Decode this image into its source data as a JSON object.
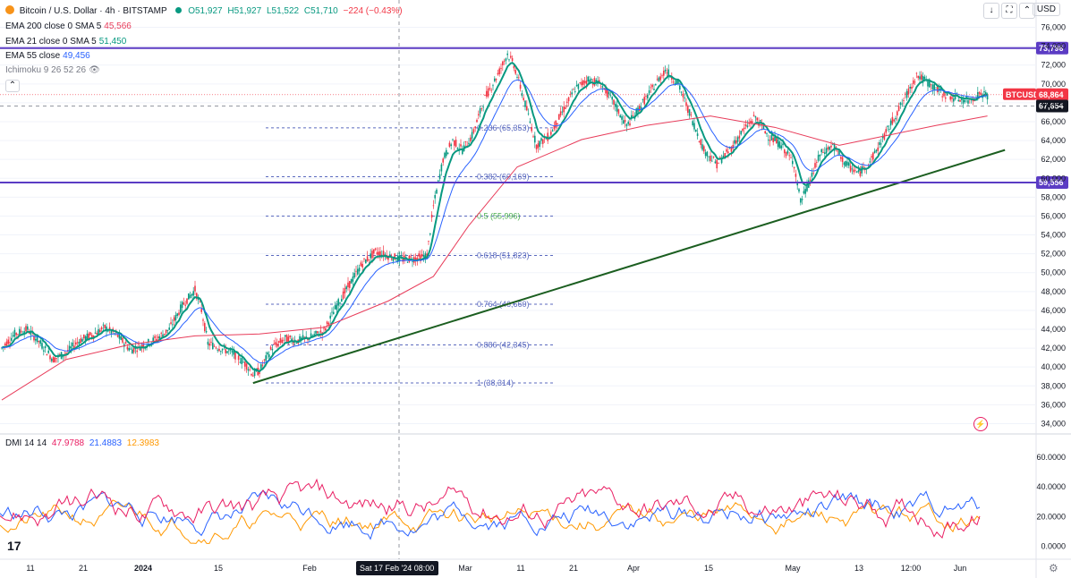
{
  "header": {
    "symbol": "Bitcoin / U.S. Dollar · 4h · BITSTAMP",
    "ohlc": {
      "o": "O51,927",
      "h": "H51,927",
      "l": "L51,522",
      "c": "C51,710",
      "change": "−224 (−0.43%)"
    },
    "currency": "USD"
  },
  "legend_lines": [
    {
      "label": "EMA 200 close 0 SMA 5",
      "value": "45,566",
      "color": "#e83c5a"
    },
    {
      "label": "EMA 21 close 0 SMA 5",
      "value": "51,450",
      "color": "#089981"
    },
    {
      "label": "EMA 55 close",
      "value": "49,456",
      "color": "#2962ff"
    },
    {
      "label": "Ichimoku 9 26 52 26",
      "value": "",
      "color": "#787b86"
    }
  ],
  "dmi_legend": {
    "label": "DMI 14 14",
    "plus": "47.9788",
    "minus": "21.4883",
    "adx": "12.3983"
  },
  "colors": {
    "up": "#089981",
    "down": "#f23645",
    "ema21": "#089981",
    "ema55": "#2962ff",
    "ema200": "#e83c5a",
    "hline": "#5b3cc4",
    "trend": "#1b5e20",
    "fib": "#5b6abf",
    "dmi_plus": "#e91e63",
    "dmi_minus": "#2962ff",
    "adx": "#ff9800"
  },
  "chart_data": {
    "type": "line",
    "title": "Bitcoin / U.S. Dollar · 4h · BITSTAMP",
    "price_axis_ticks": [
      76000,
      74000,
      72000,
      70000,
      68000,
      66000,
      64000,
      62000,
      60000,
      58000,
      56000,
      54000,
      52000,
      50000,
      48000,
      46000,
      44000,
      42000,
      40000,
      38000,
      36000,
      34000
    ],
    "price_axis_labels": [
      "76,000",
      "74,000",
      "72,000",
      "70,000",
      "68,000",
      "66,000",
      "64,000",
      "62,000",
      "60,000",
      "58,000",
      "56,000",
      "54,000",
      "52,000",
      "50,000",
      "48,000",
      "46,000",
      "44,000",
      "42,000",
      "40,000",
      "38,000",
      "36,000",
      "34,000"
    ],
    "ylim": [
      33000,
      77000
    ],
    "time_axis_labels": [
      "11",
      "21",
      "2024",
      "15",
      "Feb",
      "Sat 17 Feb '24",
      "08:00",
      "Mar",
      "11",
      "21",
      "Apr",
      "15",
      "May",
      "13",
      "12:00",
      "Jun"
    ],
    "price_path": [
      [
        0,
        42000
      ],
      [
        4,
        43500
      ],
      [
        8,
        44000
      ],
      [
        12,
        42500
      ],
      [
        16,
        40800
      ],
      [
        20,
        41500
      ],
      [
        24,
        42800
      ],
      [
        28,
        43400
      ],
      [
        32,
        44200
      ],
      [
        36,
        43300
      ],
      [
        40,
        41800
      ],
      [
        44,
        42300
      ],
      [
        48,
        43000
      ],
      [
        52,
        44000
      ],
      [
        56,
        46500
      ],
      [
        60,
        48200
      ],
      [
        62,
        46000
      ],
      [
        64,
        42500
      ],
      [
        68,
        42000
      ],
      [
        72,
        41400
      ],
      [
        76,
        40200
      ],
      [
        78,
        39200
      ],
      [
        80,
        39600
      ],
      [
        84,
        42100
      ],
      [
        88,
        43000
      ],
      [
        92,
        42800
      ],
      [
        96,
        43200
      ],
      [
        100,
        43800
      ],
      [
        104,
        46500
      ],
      [
        108,
        48800
      ],
      [
        112,
        51000
      ],
      [
        116,
        52200
      ],
      [
        120,
        51800
      ],
      [
        124,
        51400
      ],
      [
        128,
        51500
      ],
      [
        132,
        51800
      ],
      [
        134,
        57000
      ],
      [
        137,
        62000
      ],
      [
        140,
        64000
      ],
      [
        143,
        63000
      ],
      [
        146,
        64500
      ],
      [
        150,
        68500
      ],
      [
        154,
        71000
      ],
      [
        157,
        73200
      ],
      [
        159,
        72000
      ],
      [
        162,
        68500
      ],
      [
        166,
        63500
      ],
      [
        170,
        64500
      ],
      [
        174,
        67000
      ],
      [
        178,
        69500
      ],
      [
        182,
        70500
      ],
      [
        186,
        70000
      ],
      [
        190,
        68000
      ],
      [
        194,
        65500
      ],
      [
        198,
        67500
      ],
      [
        202,
        69500
      ],
      [
        206,
        71500
      ],
      [
        210,
        70000
      ],
      [
        214,
        66500
      ],
      [
        218,
        63000
      ],
      [
        222,
        61500
      ],
      [
        226,
        63000
      ],
      [
        230,
        65000
      ],
      [
        234,
        66500
      ],
      [
        238,
        64500
      ],
      [
        242,
        63500
      ],
      [
        246,
        61500
      ],
      [
        248,
        57500
      ],
      [
        250,
        59000
      ],
      [
        254,
        62500
      ],
      [
        258,
        63500
      ],
      [
        262,
        61500
      ],
      [
        266,
        60500
      ],
      [
        270,
        62000
      ],
      [
        274,
        64500
      ],
      [
        278,
        67000
      ],
      [
        282,
        69500
      ],
      [
        284,
        71000
      ],
      [
        288,
        70000
      ],
      [
        292,
        69000
      ],
      [
        296,
        68500
      ],
      [
        300,
        68200
      ],
      [
        304,
        69000
      ],
      [
        306,
        68800
      ]
    ],
    "ema200_path": [
      [
        0,
        36500
      ],
      [
        20,
        40800
      ],
      [
        40,
        42400
      ],
      [
        60,
        43300
      ],
      [
        80,
        43500
      ],
      [
        100,
        44200
      ],
      [
        120,
        47000
      ],
      [
        134,
        49600
      ],
      [
        145,
        55000
      ],
      [
        160,
        61200
      ],
      [
        180,
        64100
      ],
      [
        200,
        65600
      ],
      [
        220,
        66600
      ],
      [
        240,
        65400
      ],
      [
        260,
        63500
      ],
      [
        270,
        64200
      ],
      [
        290,
        65600
      ],
      [
        306,
        66600
      ]
    ],
    "ema_lines_values": {
      "ema21": 51450,
      "ema55": 49456,
      "ema200": 45566
    },
    "horizontal_levels": [
      {
        "price": 73796,
        "label": "73,796"
      },
      {
        "price": 59556,
        "label": "59,556"
      }
    ],
    "last_price": {
      "label": "BTCUSD",
      "value": "68,864",
      "price": 68864
    },
    "cursor_price": {
      "value": "67,654",
      "price": 67654
    },
    "fib_levels": [
      {
        "ratio": "0.236",
        "price": 65353,
        "text": "0.236 (65,353)"
      },
      {
        "ratio": "0.382",
        "price": 60169,
        "text": "0.382 (60,169)"
      },
      {
        "ratio": "0.5",
        "price": 55996,
        "text": "0.5 (55,996)"
      },
      {
        "ratio": "0.618",
        "price": 51823,
        "text": "0.618 (51,823)"
      },
      {
        "ratio": "0.764",
        "price": 46660,
        "text": "0.764 (46,660)"
      },
      {
        "ratio": "0.886",
        "price": 42345,
        "text": "0.886 (42,345)"
      },
      {
        "ratio": "1",
        "price": 38314,
        "text": "1 (38,314)"
      }
    ],
    "trendline": {
      "from": [
        78,
        38300
      ],
      "to": [
        312,
        63000
      ]
    },
    "dmi_axis_labels": [
      "60.0000",
      "40.0000",
      "20.0000",
      "0.0000"
    ],
    "dmi_ticks": [
      60,
      40,
      20,
      0
    ],
    "dmi_ylim": [
      -8,
      75
    ]
  }
}
